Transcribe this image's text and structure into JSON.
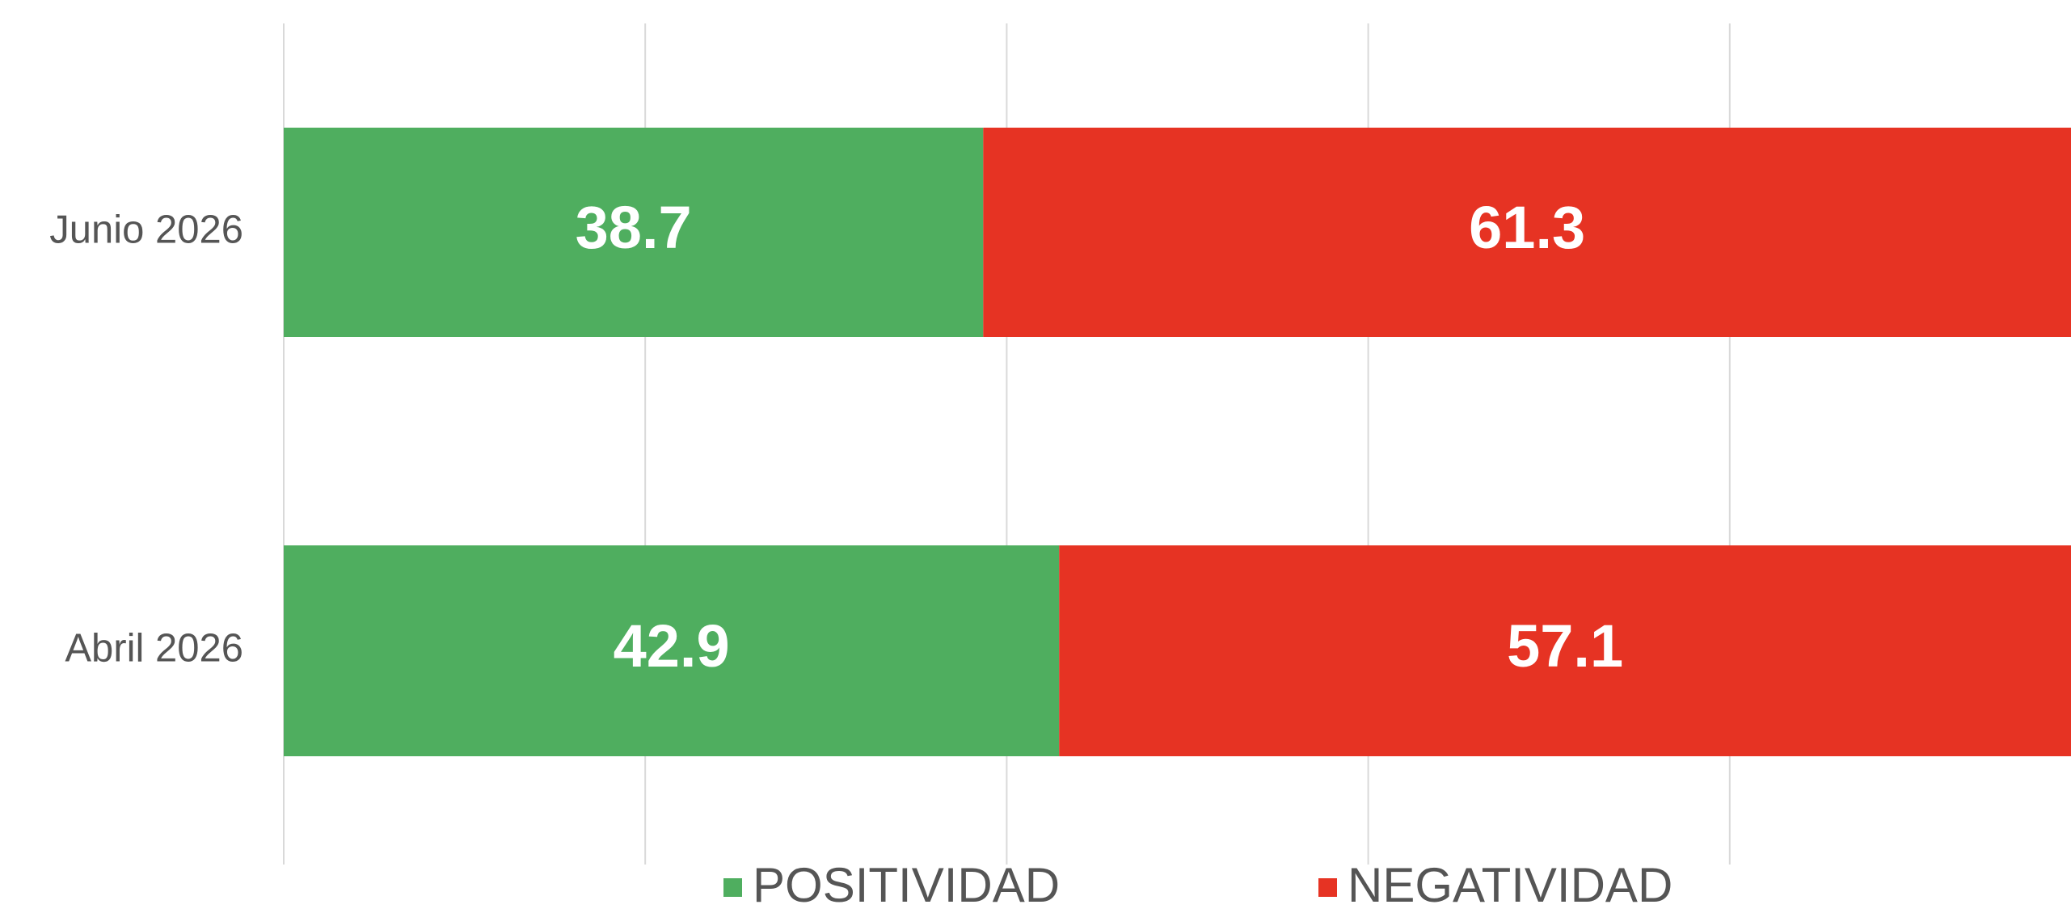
{
  "chart_data": {
    "type": "stacked_bar_horizontal",
    "categories": [
      "Junio 2026",
      "Abril 2026"
    ],
    "series": [
      {
        "name": "POSITIVIDAD",
        "color": "#4fae5f",
        "values": [
          38.7,
          42.9
        ]
      },
      {
        "name": "NEGATIVIDAD",
        "color": "#e63323",
        "values": [
          61.3,
          57.1
        ]
      }
    ],
    "xlim": [
      0,
      100
    ],
    "xticks": [
      0,
      20,
      40,
      60,
      80,
      100
    ],
    "grid": true,
    "legend": "bottom"
  }
}
